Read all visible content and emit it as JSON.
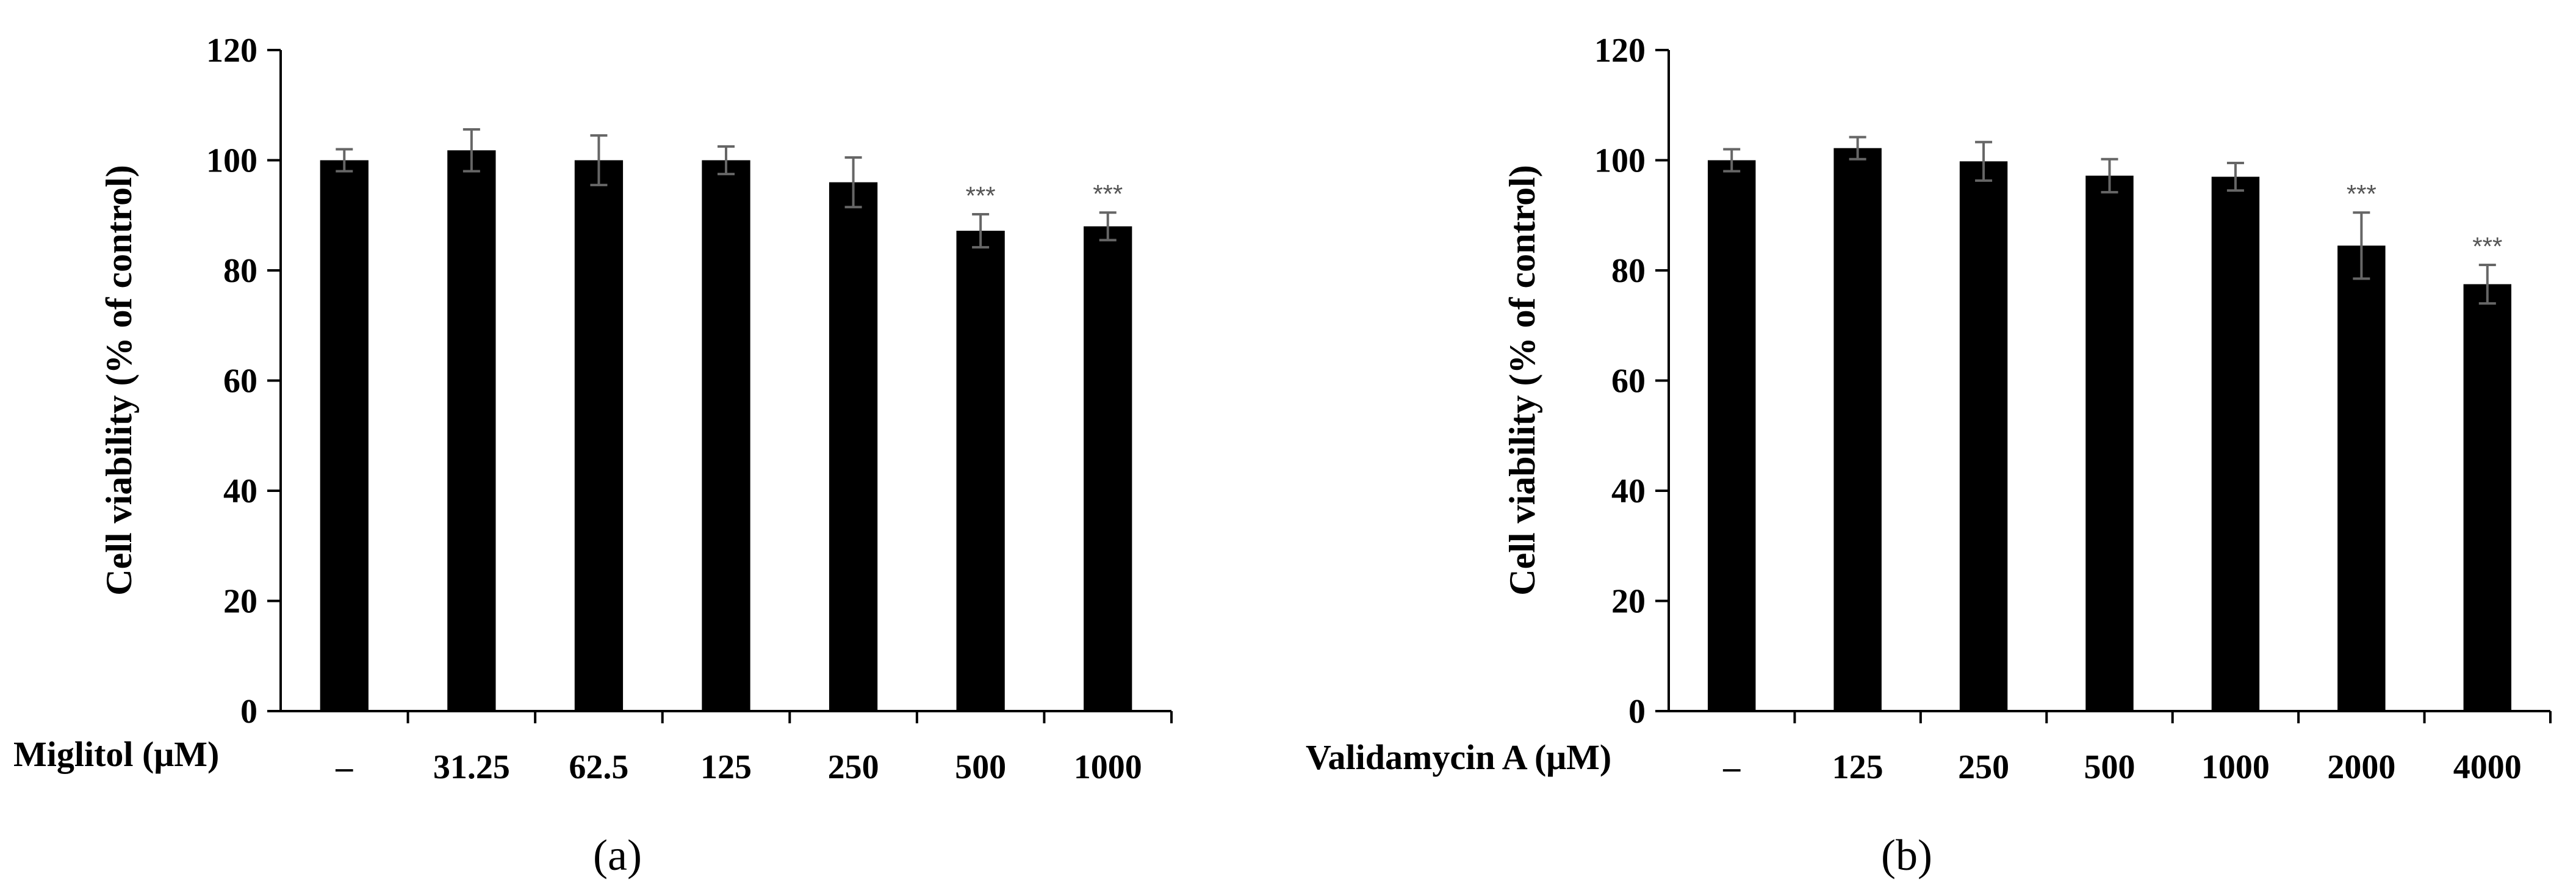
{
  "colors": {
    "bar": "#000000",
    "axis": "#000000",
    "errorbar": "#666666",
    "significance": "#555555"
  },
  "chart_data": [
    {
      "type": "bar",
      "panel_label": "(a)",
      "title": "",
      "ylabel": "Cell viability  (% of control)",
      "xlabel": "Miglitol  (μM)",
      "ylim": [
        0,
        120
      ],
      "yticks": [
        "0",
        "20",
        "40",
        "60",
        "80",
        "100",
        "120"
      ],
      "categories": [
        "–",
        "31.25",
        "62.5",
        "125",
        "250",
        "500",
        "1000"
      ],
      "values": [
        100,
        101.8,
        100,
        100,
        96,
        87.2,
        88
      ],
      "errors": [
        2,
        3.8,
        4.5,
        2.5,
        4.5,
        3,
        2.5
      ],
      "significance": [
        "",
        "",
        "",
        "",
        "",
        "***",
        "***"
      ]
    },
    {
      "type": "bar",
      "panel_label": "(b)",
      "title": "",
      "ylabel": "Cell viability  (% of control)",
      "xlabel": "Validamycin A (μM)",
      "ylim": [
        0,
        120
      ],
      "yticks": [
        "0",
        "20",
        "40",
        "60",
        "80",
        "100",
        "120"
      ],
      "categories": [
        "–",
        "125",
        "250",
        "500",
        "1000",
        "2000",
        "4000"
      ],
      "values": [
        100,
        102.2,
        99.8,
        97.2,
        97,
        84.5,
        77.5
      ],
      "errors": [
        2,
        2,
        3.5,
        3,
        2.5,
        6,
        3.5
      ],
      "significance": [
        "",
        "",
        "",
        "",
        "",
        "***",
        "***"
      ]
    }
  ]
}
